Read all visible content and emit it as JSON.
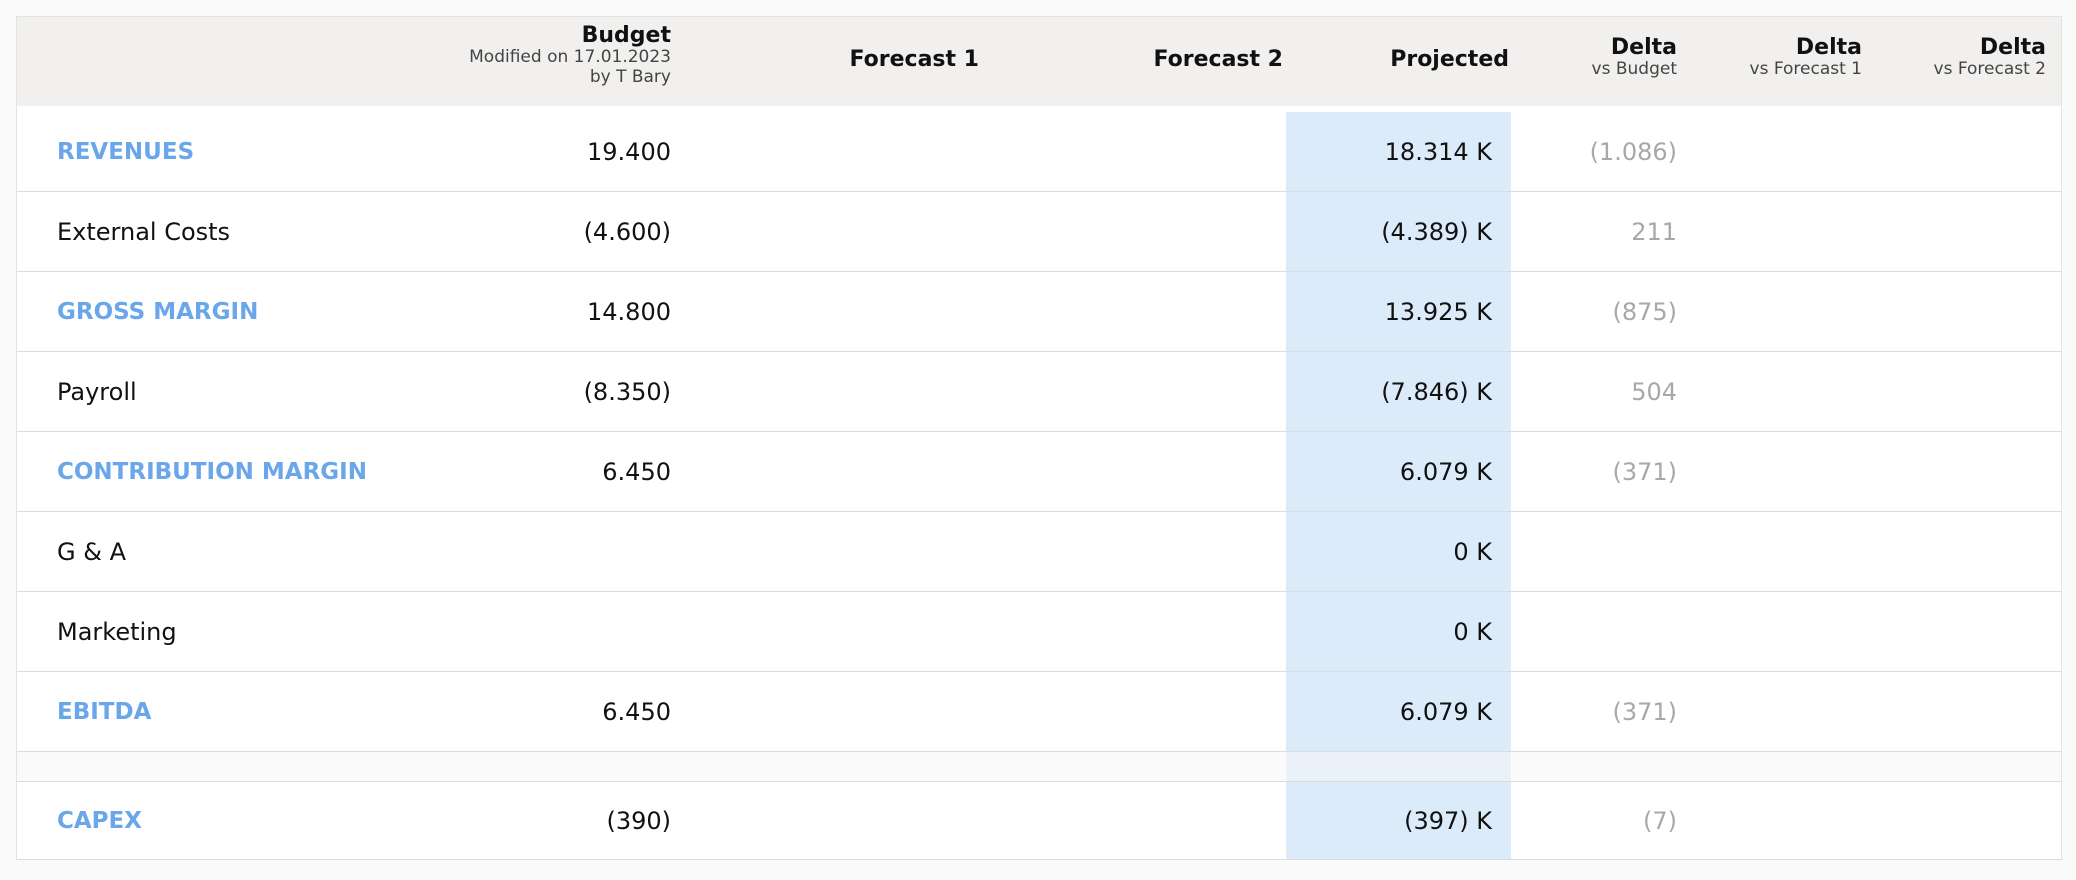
{
  "header": {
    "budget": {
      "title": "Budget",
      "modified": "Modified on 17.01.2023",
      "by": "by T Bary"
    },
    "forecast1": "Forecast 1",
    "forecast2": "Forecast 2",
    "projected": "Projected",
    "delta_budget": {
      "title": "Delta",
      "sub": "vs Budget"
    },
    "delta_f1": {
      "title": "Delta",
      "sub": "vs Forecast 1"
    },
    "delta_f2": {
      "title": "Delta",
      "sub": "vs Forecast 2"
    }
  },
  "rows": [
    {
      "label": "REVENUES",
      "section": true,
      "budget": "19.400",
      "projected": "18.314 K",
      "delta_budget": "(1.086)"
    },
    {
      "label": "External Costs",
      "section": false,
      "budget": "(4.600)",
      "projected": "(4.389) K",
      "delta_budget": "211"
    },
    {
      "label": "GROSS MARGIN",
      "section": true,
      "budget": "14.800",
      "projected": "13.925 K",
      "delta_budget": "(875)"
    },
    {
      "label": "Payroll",
      "section": false,
      "budget": "(8.350)",
      "projected": "(7.846) K",
      "delta_budget": "504"
    },
    {
      "label": "CONTRIBUTION MARGIN",
      "section": true,
      "budget": "6.450",
      "projected": "6.079 K",
      "delta_budget": "(371)"
    },
    {
      "label": "G & A",
      "section": false,
      "budget": "",
      "projected": "0 K",
      "delta_budget": ""
    },
    {
      "label": "Marketing",
      "section": false,
      "budget": "",
      "projected": "0 K",
      "delta_budget": ""
    },
    {
      "label": "EBITDA",
      "section": true,
      "budget": "6.450",
      "projected": "6.079 K",
      "delta_budget": "(371)"
    },
    {
      "label": "CAPEX",
      "section": true,
      "budget": "(390)",
      "projected": "(397) K",
      "delta_budget": "(7)"
    }
  ],
  "colors": {
    "section_label": "#69a6ea",
    "projected_highlight": "#dcebfa",
    "header_bg": "#f1f0ee",
    "delta_text": "#a8a8a8"
  }
}
